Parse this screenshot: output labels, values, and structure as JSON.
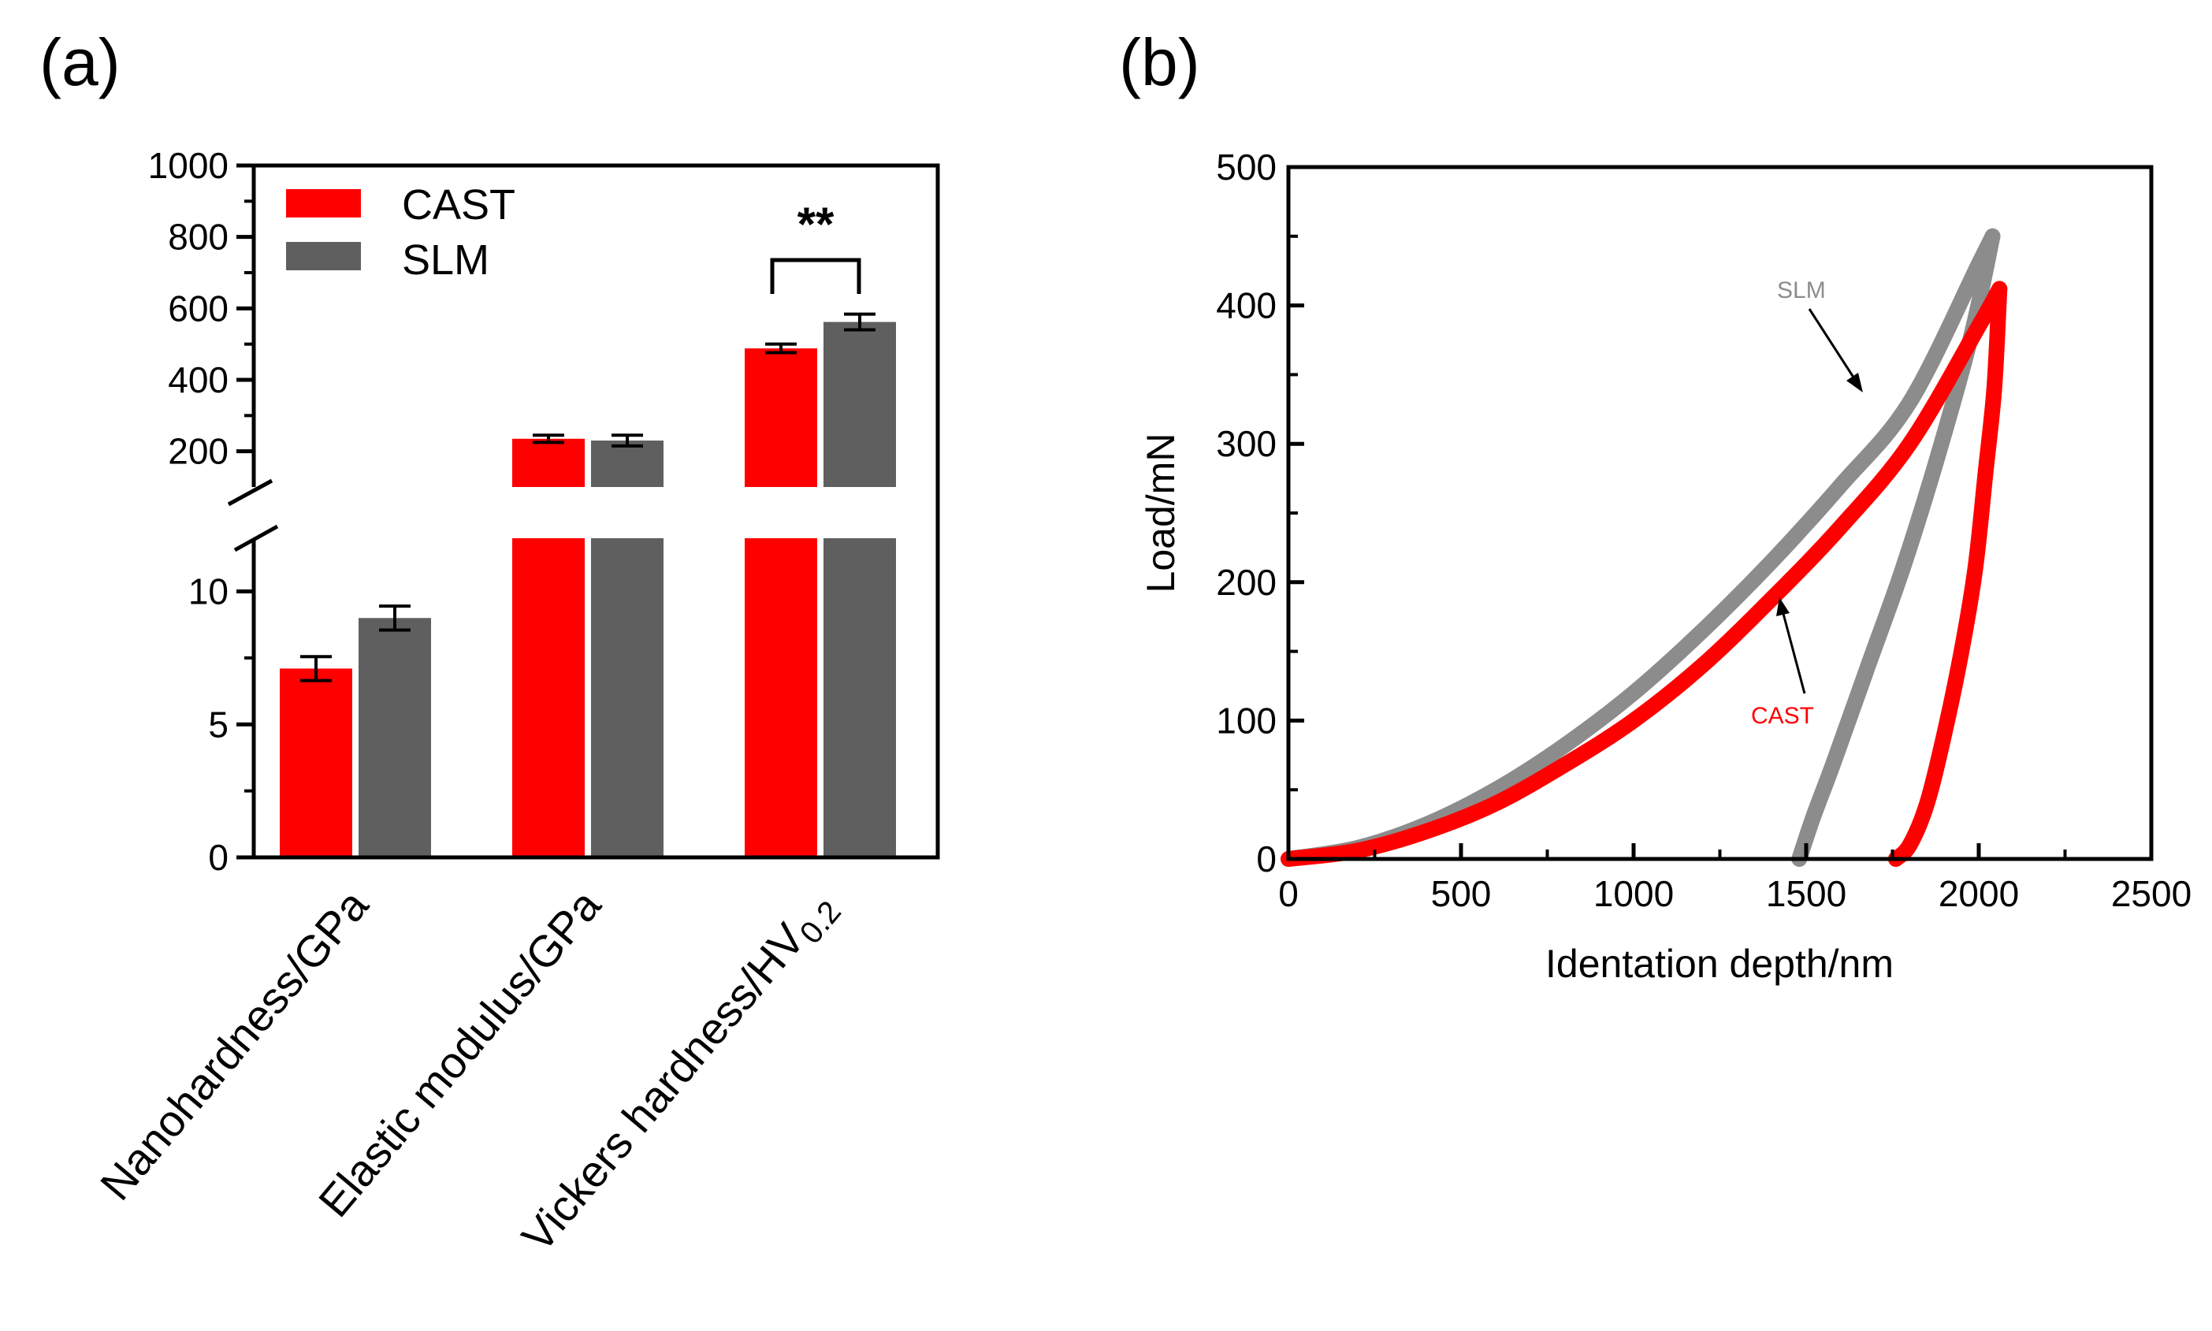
{
  "chart_data": [
    {
      "panel_label": "(a)",
      "type": "bar",
      "categories": [
        "Nanohardness/GPa",
        "Elastic modulus/GPa",
        "Vickers hardness/HV0.2"
      ],
      "category_subscript": {
        "index": 2,
        "base": "Vickers hardness/HV",
        "sub": "0.2"
      },
      "series": [
        {
          "name": "CAST",
          "color": "#ff0000",
          "values": [
            7.1,
            235,
            488
          ],
          "errors": [
            0.45,
            10,
            12
          ]
        },
        {
          "name": "SLM",
          "color": "#5f5f5f",
          "values": [
            9.0,
            230,
            562
          ],
          "errors": [
            0.45,
            15,
            22
          ]
        }
      ],
      "broken_axis": {
        "lower_range": [
          0,
          12
        ],
        "lower_ticks": [
          "0",
          "5",
          "10"
        ],
        "upper_range": [
          100,
          1000
        ],
        "upper_ticks": [
          "200",
          "400",
          "600",
          "800",
          "1000"
        ]
      },
      "significance": {
        "label": "**",
        "category_index": 2
      },
      "legend": "top-left"
    },
    {
      "panel_label": "(b)",
      "type": "line",
      "xlabel": "Identation depth/nm",
      "ylabel": "Load/mN",
      "xlim": [
        0,
        2500
      ],
      "ylim": [
        0,
        500
      ],
      "xticks": [
        "0",
        "500",
        "1000",
        "1500",
        "2000",
        "2500"
      ],
      "yticks": [
        "0",
        "100",
        "200",
        "300",
        "400",
        "500"
      ],
      "series": [
        {
          "name": "SLM",
          "color": "#8c8c8c",
          "loading": {
            "x": [
              0,
              200,
              400,
              600,
              800,
              1000,
              1200,
              1400,
              1600,
              1800,
              2000,
              2040
            ],
            "y": [
              0,
              8,
              25,
              50,
              82,
              120,
              165,
              215,
              270,
              330,
              430,
              450
            ]
          },
          "unloading": {
            "x": [
              2040,
              1980,
              1880,
              1780,
              1680,
              1580,
              1520,
              1480
            ],
            "y": [
              450,
              380,
              290,
              210,
              140,
              70,
              30,
              0
            ]
          }
        },
        {
          "name": "CAST",
          "color": "#ff0000",
          "loading": {
            "x": [
              0,
              200,
              400,
              600,
              800,
              1000,
              1200,
              1400,
              1600,
              1800,
              2000,
              2060
            ],
            "y": [
              0,
              6,
              20,
              40,
              68,
              100,
              140,
              188,
              240,
              300,
              385,
              412
            ]
          },
          "unloading": {
            "x": [
              2060,
              2045,
              2020,
              1990,
              1950,
              1900,
              1850,
              1800,
              1760
            ],
            "y": [
              412,
              340,
              280,
              210,
              150,
              90,
              40,
              10,
              0
            ]
          }
        }
      ],
      "annotations": [
        {
          "text": "SLM",
          "color": "#8c8c8c"
        },
        {
          "text": "CAST",
          "color": "#ff0000"
        }
      ]
    }
  ]
}
